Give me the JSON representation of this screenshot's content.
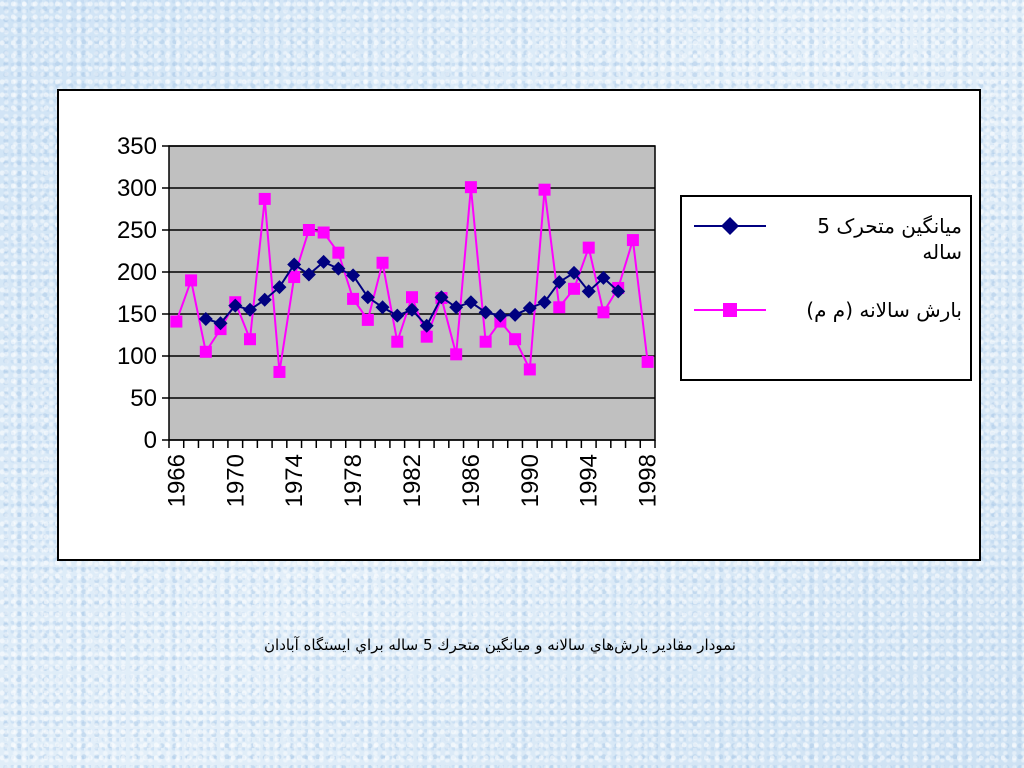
{
  "caption": "نمودار مقادير بارش‌هاي سالانه و ميانگين متحرك 5 ساله براي ايستگاه آبادان",
  "chart_data": {
    "type": "line",
    "title": "",
    "xlabel": "",
    "ylabel": "",
    "xlim": [
      1966,
      1998
    ],
    "ylim": [
      0,
      350
    ],
    "y_ticks": [
      0,
      50,
      100,
      150,
      200,
      250,
      300,
      350
    ],
    "x_tick_labels": [
      "1966",
      "1970",
      "1974",
      "1978",
      "1982",
      "1986",
      "1990",
      "1994",
      "1998"
    ],
    "grid": "horizontal",
    "plot_background": "#c0c0c0",
    "legend_position": "right",
    "series": [
      {
        "name": "ميانگين متحرک 5 ساله",
        "color": "#000080",
        "marker": "diamond",
        "x": [
          1968,
          1969,
          1970,
          1971,
          1972,
          1973,
          1974,
          1975,
          1976,
          1977,
          1978,
          1979,
          1980,
          1981,
          1982,
          1983,
          1984,
          1985,
          1986,
          1987,
          1988,
          1989,
          1990,
          1991,
          1992,
          1993,
          1994,
          1995,
          1996
        ],
        "values": [
          144,
          139,
          160,
          155,
          167,
          182,
          209,
          197,
          212,
          204,
          196,
          170,
          158,
          148,
          155,
          136,
          170,
          158,
          164,
          152,
          148,
          149,
          157,
          164,
          188,
          199,
          177,
          193,
          177
        ]
      },
      {
        "name": "بارش سالانه (م م)",
        "color": "#ff00ff",
        "marker": "square",
        "x": [
          1966,
          1967,
          1968,
          1969,
          1970,
          1971,
          1972,
          1973,
          1974,
          1975,
          1976,
          1977,
          1978,
          1979,
          1980,
          1981,
          1982,
          1983,
          1984,
          1985,
          1986,
          1987,
          1988,
          1989,
          1990,
          1991,
          1992,
          1993,
          1994,
          1995,
          1996,
          1997,
          1998
        ],
        "values": [
          141,
          190,
          105,
          132,
          164,
          120,
          287,
          81,
          194,
          250,
          247,
          223,
          168,
          143,
          211,
          117,
          170,
          123,
          169,
          102,
          301,
          117,
          141,
          120,
          84,
          298,
          158,
          180,
          229,
          152,
          181,
          238,
          93
        ]
      }
    ]
  }
}
